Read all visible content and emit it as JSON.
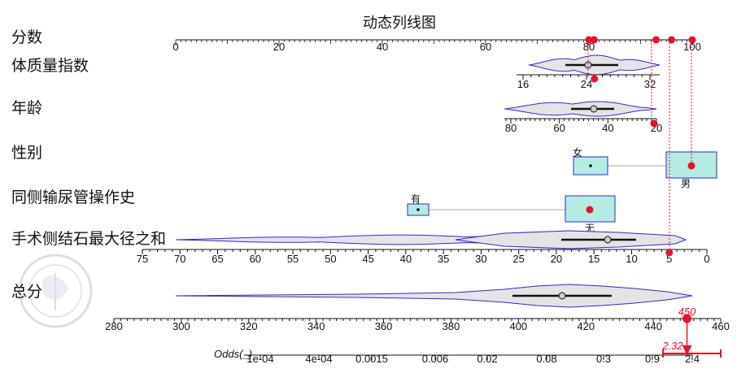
{
  "chart_data": {
    "type": "nomogram",
    "title": "动态列线图",
    "point_dots": [
      80,
      81,
      93,
      96,
      100
    ],
    "rows": [
      {
        "id": "points",
        "label": "分数",
        "ticks": [
          "0",
          "20",
          "40",
          "60",
          "80",
          "100"
        ]
      },
      {
        "id": "bmi",
        "label": "体质量指数",
        "ticks": [
          "16",
          "24",
          "32"
        ],
        "selected": 25
      },
      {
        "id": "age",
        "label": "年龄",
        "ticks": [
          "80",
          "60",
          "40",
          "20"
        ],
        "selected": 21
      },
      {
        "id": "sex",
        "label": "性别",
        "categories": [
          "女",
          "男"
        ],
        "selected": "男"
      },
      {
        "id": "ureter",
        "label": "同侧输尿管操作史",
        "categories": [
          "有",
          "无"
        ],
        "selected": "无"
      },
      {
        "id": "stone",
        "label": "手术侧结石最大径之和",
        "ticks": [
          "75",
          "70",
          "65",
          "60",
          "55",
          "50",
          "45",
          "40",
          "35",
          "30",
          "25",
          "20",
          "15",
          "10",
          "5",
          "0"
        ],
        "selected": 5
      },
      {
        "id": "total",
        "label": "总分",
        "ticks": [
          "280",
          "300",
          "320",
          "340",
          "360",
          "380",
          "400",
          "420",
          "440",
          "460"
        ],
        "selected": 450,
        "selected_label": "450"
      },
      {
        "id": "odds",
        "label": "Odds(_)",
        "ticks": [
          "1e-04",
          "4e-04",
          "0.0015",
          "0.006",
          "0.02",
          "0.08",
          "0.3",
          "0.9",
          "2.4"
        ],
        "selected": 2.32,
        "selected_label": "2.32"
      }
    ]
  }
}
